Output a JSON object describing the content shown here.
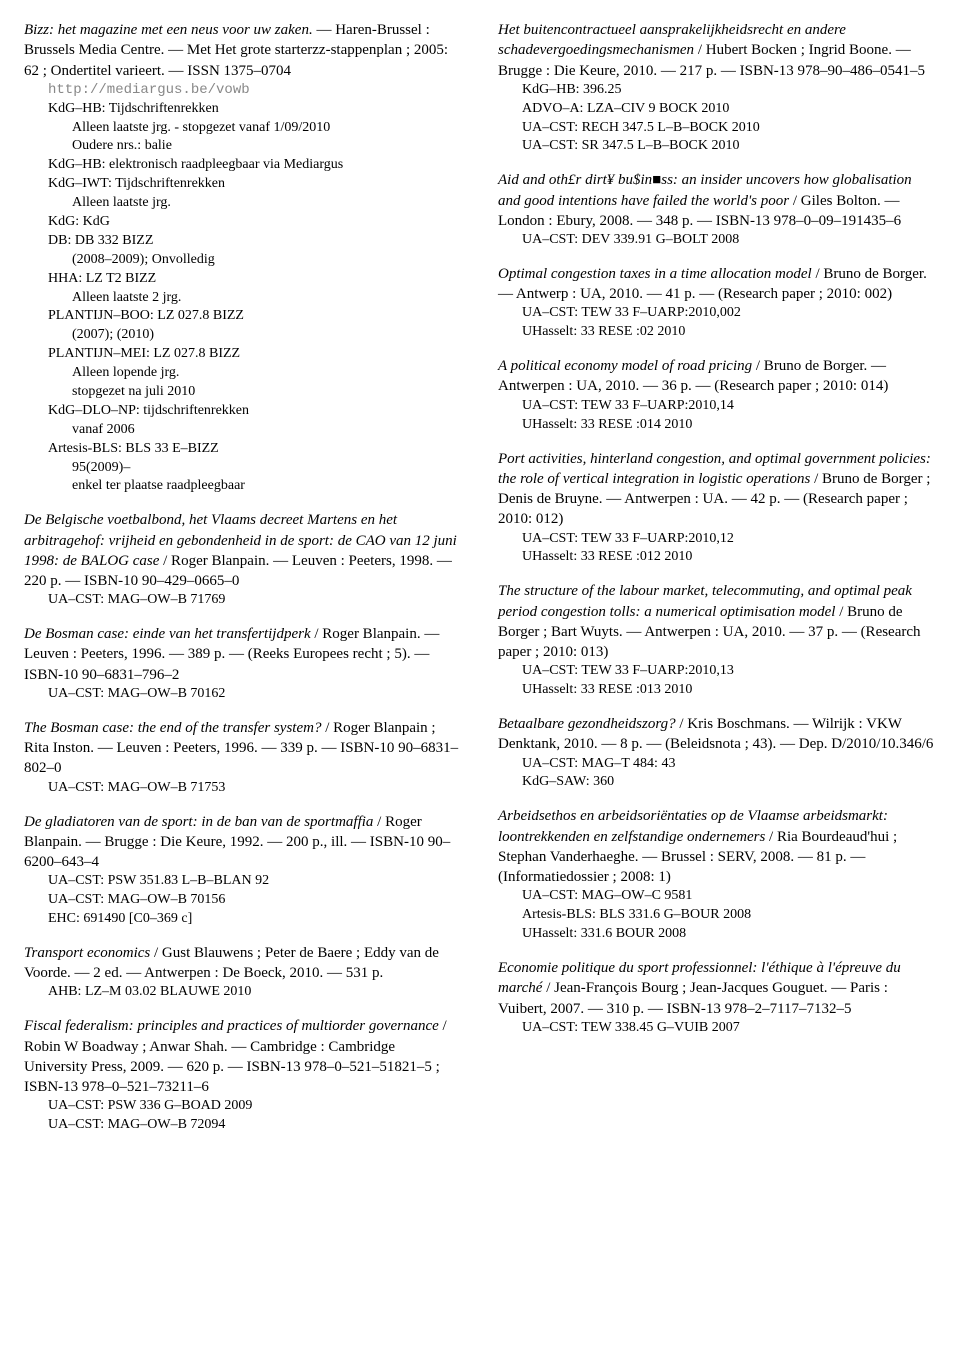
{
  "left": [
    {
      "type": "entry",
      "lines": [
        {
          "parts": [
            {
              "t": "Bizz: het magazine met een neus voor uw zaken.",
              "i": true
            },
            {
              "t": " — Haren-Brussel : Brussels Media Centre. — Met Het grote starterzz-stappenplan ; 2005: 62 ; Ondertitel varieert. — ISSN 1375–0704"
            }
          ]
        }
      ],
      "holdings": [
        {
          "text": "http://mediargus.be/vowb",
          "cls": "link indent1"
        },
        {
          "text": "KdG–HB: Tijdschriftenrekken",
          "cls": "holding"
        },
        {
          "text": "Alleen laatste jrg. - stopgezet vanaf 1/09/2010",
          "cls": "holding-sub"
        },
        {
          "text": "Oudere nrs.: balie",
          "cls": "holding-sub"
        },
        {
          "text": "KdG–HB: elektronisch raadpleegbaar via Mediargus",
          "cls": "holding"
        },
        {
          "text": "KdG–IWT: Tijdschriftenrekken",
          "cls": "holding"
        },
        {
          "text": "Alleen laatste jrg.",
          "cls": "holding-sub"
        },
        {
          "text": "KdG: KdG",
          "cls": "holding"
        },
        {
          "text": "DB: DB 332 BIZZ",
          "cls": "holding"
        },
        {
          "text": "(2008–2009); Onvolledig",
          "cls": "holding-sub"
        },
        {
          "text": "HHA: LZ T2 BIZZ",
          "cls": "holding"
        },
        {
          "text": "Alleen laatste 2 jrg.",
          "cls": "holding-sub"
        },
        {
          "text": "PLANTIJN–BOO: LZ 027.8 BIZZ",
          "cls": "holding"
        },
        {
          "text": "(2007); (2010)",
          "cls": "holding-sub"
        },
        {
          "text": "PLANTIJN–MEI: LZ 027.8 BIZZ",
          "cls": "holding"
        },
        {
          "text": "Alleen lopende jrg.",
          "cls": "holding-sub"
        },
        {
          "text": "stopgezet na juli 2010",
          "cls": "holding-sub"
        },
        {
          "text": "KdG–DLO–NP: tijdschriftenrekken",
          "cls": "holding"
        },
        {
          "text": "vanaf 2006",
          "cls": "holding-sub"
        },
        {
          "text": "Artesis-BLS: BLS 33 E–BIZZ",
          "cls": "holding"
        },
        {
          "text": "95(2009)–",
          "cls": "holding-sub"
        },
        {
          "text": "enkel ter plaatse raadpleegbaar",
          "cls": "holding-sub"
        }
      ]
    },
    {
      "type": "entry",
      "lines": [
        {
          "parts": [
            {
              "t": "De Belgische voetbalbond, het Vlaams decreet Martens en het arbitragehof: vrijheid en gebondenheid in de sport: de CAO van 12 juni 1998: de BALOG case",
              "i": true
            },
            {
              "t": " / Roger Blanpain. — Leuven : Peeters, 1998. — 220 p. — ISBN-10 90–429–0665–0"
            }
          ]
        }
      ],
      "holdings": [
        {
          "text": "UA–CST: MAG–OW–B 71769",
          "cls": "holding"
        }
      ]
    },
    {
      "type": "entry",
      "lines": [
        {
          "parts": [
            {
              "t": "De Bosman case: einde van het transfertijdperk",
              "i": true
            },
            {
              "t": " / Roger Blanpain. — Leuven : Peeters, 1996. — 389 p. — (Reeks Europees recht ; 5). — ISBN-10 90–6831–796–2"
            }
          ]
        }
      ],
      "holdings": [
        {
          "text": "UA–CST: MAG–OW–B 70162",
          "cls": "holding"
        }
      ]
    },
    {
      "type": "entry",
      "lines": [
        {
          "parts": [
            {
              "t": "The Bosman case: the end of the transfer system?",
              "i": true
            },
            {
              "t": " / Roger Blanpain ; Rita Inston. — Leuven : Peeters, 1996. — 339 p. — ISBN-10 90–6831–802–0"
            }
          ]
        }
      ],
      "holdings": [
        {
          "text": "UA–CST: MAG–OW–B 71753",
          "cls": "holding"
        }
      ]
    },
    {
      "type": "entry",
      "lines": [
        {
          "parts": [
            {
              "t": "De gladiatoren van de sport: in de ban van de sportmaffia",
              "i": true
            },
            {
              "t": " / Roger Blanpain. — Brugge : Die Keure, 1992. — 200 p., ill. — ISBN-10 90–6200–643–4"
            }
          ]
        }
      ],
      "holdings": [
        {
          "text": "UA–CST: PSW 351.83 L–B–BLAN 92",
          "cls": "holding"
        },
        {
          "text": "UA–CST: MAG–OW–B 70156",
          "cls": "holding"
        },
        {
          "text": "EHC: 691490 [C0–369 c]",
          "cls": "holding"
        }
      ]
    },
    {
      "type": "entry",
      "lines": [
        {
          "parts": [
            {
              "t": "Transport economics",
              "i": true
            },
            {
              "t": " / Gust Blauwens ; Peter de Baere ; Eddy van de Voorde. — 2 ed. — Antwerpen : De Boeck, 2010. — 531 p."
            }
          ]
        }
      ],
      "holdings": [
        {
          "text": "AHB: LZ–M 03.02 BLAUWE 2010",
          "cls": "holding"
        }
      ]
    },
    {
      "type": "entry",
      "lines": [
        {
          "parts": [
            {
              "t": "Fiscal federalism: principles and practices of multiorder governance",
              "i": true
            },
            {
              "t": " / Robin W Boadway ; Anwar Shah. — Cambridge : Cambridge University Press, 2009. — 620 p. — ISBN-13 978–0–521–51821–5 ; ISBN-13 978–0–521–73211–6"
            }
          ]
        }
      ],
      "holdings": [
        {
          "text": "UA–CST: PSW 336 G–BOAD 2009",
          "cls": "holding"
        },
        {
          "text": "UA–CST: MAG–OW–B 72094",
          "cls": "holding"
        }
      ]
    }
  ],
  "right": [
    {
      "type": "entry",
      "lines": [
        {
          "parts": [
            {
              "t": "Het buitencontractueel aansprakelijkheidsrecht en andere schadevergoedingsmechanismen",
              "i": true
            },
            {
              "t": " / Hubert Bocken ; Ingrid Boone. — Brugge : Die Keure, 2010. — 217 p. — ISBN-13 978–90–486–0541–5"
            }
          ]
        }
      ],
      "holdings": [
        {
          "text": "KdG–HB: 396.25",
          "cls": "holding"
        },
        {
          "text": "ADVO–A: LZA–CIV 9 BOCK 2010",
          "cls": "holding"
        },
        {
          "text": "UA–CST: RECH 347.5 L–B–BOCK 2010",
          "cls": "holding"
        },
        {
          "text": "UA–CST: SR 347.5 L–B–BOCK 2010",
          "cls": "holding"
        }
      ]
    },
    {
      "type": "entry",
      "lines": [
        {
          "parts": [
            {
              "t": "Aid and oth£r dirt¥ bu$in■ss: an insider uncovers how globalisation and good intentions have failed the world's poor",
              "i": true
            },
            {
              "t": " / Giles Bolton. — London : Ebury, 2008. — 348 p. — ISBN-13 978–0–09–191435–6"
            }
          ]
        }
      ],
      "holdings": [
        {
          "text": "UA–CST: DEV 339.91 G–BOLT 2008",
          "cls": "holding"
        }
      ]
    },
    {
      "type": "entry",
      "lines": [
        {
          "parts": [
            {
              "t": "Optimal congestion taxes in a time allocation model",
              "i": true
            },
            {
              "t": " / Bruno de Borger. — Antwerp : UA, 2010. — 41 p. — (Research paper ; 2010: 002)"
            }
          ]
        }
      ],
      "holdings": [
        {
          "text": "UA–CST: TEW 33 F–UARP:2010,002",
          "cls": "holding"
        },
        {
          "text": "UHasselt: 33 RESE :02 2010",
          "cls": "holding"
        }
      ]
    },
    {
      "type": "entry",
      "lines": [
        {
          "parts": [
            {
              "t": "A political economy model of road pricing",
              "i": true
            },
            {
              "t": " / Bruno de Borger. — Antwerpen : UA, 2010. — 36 p. — (Research paper ; 2010: 014)"
            }
          ]
        }
      ],
      "holdings": [
        {
          "text": "UA–CST: TEW 33 F–UARP:2010,14",
          "cls": "holding"
        },
        {
          "text": "UHasselt: 33 RESE :014 2010",
          "cls": "holding"
        }
      ]
    },
    {
      "type": "entry",
      "lines": [
        {
          "parts": [
            {
              "t": "Port activities, hinterland congestion, and optimal government policies: the role of vertical integration in logistic operations",
              "i": true
            },
            {
              "t": " / Bruno de Borger ; Denis de Bruyne. — Antwerpen : UA. — 42 p. — (Research paper ; 2010: 012)"
            }
          ]
        }
      ],
      "holdings": [
        {
          "text": "UA–CST: TEW 33 F–UARP:2010,12",
          "cls": "holding"
        },
        {
          "text": "UHasselt: 33 RESE :012 2010",
          "cls": "holding"
        }
      ]
    },
    {
      "type": "entry",
      "lines": [
        {
          "parts": [
            {
              "t": "The structure of the labour market, telecommuting, and optimal peak period congestion tolls: a numerical optimisation model",
              "i": true
            },
            {
              "t": " / Bruno de Borger ; Bart Wuyts. — Antwerpen : UA, 2010. — 37 p. — (Research paper ; 2010: 013)"
            }
          ]
        }
      ],
      "holdings": [
        {
          "text": "UA–CST: TEW 33 F–UARP:2010,13",
          "cls": "holding"
        },
        {
          "text": "UHasselt: 33 RESE :013 2010",
          "cls": "holding"
        }
      ]
    },
    {
      "type": "entry",
      "lines": [
        {
          "parts": [
            {
              "t": "Betaalbare gezondheidszorg?",
              "i": true
            },
            {
              "t": " / Kris Boschmans. — Wilrijk : VKW Denktank, 2010. — 8 p. — (Beleidsnota ; 43). — Dep. D/2010/10.346/6"
            }
          ]
        }
      ],
      "holdings": [
        {
          "text": "UA–CST: MAG–T 484: 43",
          "cls": "holding"
        },
        {
          "text": "KdG–SAW: 360",
          "cls": "holding"
        }
      ]
    },
    {
      "type": "entry",
      "lines": [
        {
          "parts": [
            {
              "t": "Arbeidsethos en arbeidsoriëntaties op de Vlaamse arbeidsmarkt: loontrekkenden en zelfstandige ondernemers",
              "i": true
            },
            {
              "t": " / Ria Bourdeaud'hui ; Stephan Vanderhaeghe. — Brussel : SERV, 2008. — 81 p. — (Informatiedossier ; 2008: 1)"
            }
          ]
        }
      ],
      "holdings": [
        {
          "text": "UA–CST: MAG–OW–C 9581",
          "cls": "holding"
        },
        {
          "text": "Artesis-BLS: BLS 331.6 G–BOUR 2008",
          "cls": "holding"
        },
        {
          "text": "UHasselt: 331.6 BOUR 2008",
          "cls": "holding"
        }
      ]
    },
    {
      "type": "entry",
      "lines": [
        {
          "parts": [
            {
              "t": "Economie politique du sport professionnel: l'éthique à l'épreuve du marché",
              "i": true
            },
            {
              "t": " / Jean-François Bourg ; Jean-Jacques Gouguet. — Paris : Vuibert, 2007. — 310 p. — ISBN-13 978–2–7117–7132–5"
            }
          ]
        }
      ],
      "holdings": [
        {
          "text": "UA–CST: TEW 338.45 G–VUIB 2007",
          "cls": "holding"
        }
      ]
    }
  ]
}
